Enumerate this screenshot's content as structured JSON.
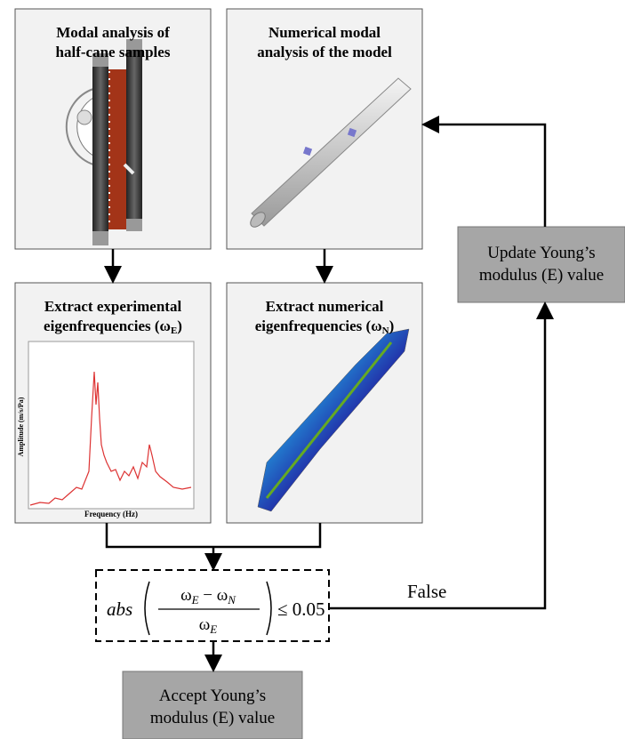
{
  "boxes": [
    {
      "lines": [
        "Modal analysis of",
        "half-cane samples"
      ]
    },
    {
      "lines": [
        "Numerical modal",
        "analysis of the model"
      ]
    },
    {
      "lines": [
        "Extract experimental"
      ],
      "prefix": "eigenfrequencies (ω",
      "sub": "E",
      "suffix": ")",
      "y_axis_label": "Amplitude (m/s/Pa)",
      "x_axis_label": "Frequency (Hz)"
    },
    {
      "lines": [
        "Extract numerical"
      ],
      "prefix": "eigenfrequencies (ω",
      "sub": "N",
      "suffix": ")"
    }
  ],
  "decision": {
    "abs": "abs",
    "numerator": "ω",
    "num_sub1": "E",
    "minus": " − ω",
    "num_sub2": "N",
    "denominator": "ω",
    "den_sub": "E",
    "condition": "≤ 0.05"
  },
  "false_label": "False",
  "update": {
    "lines": [
      "Update Young’s",
      "modulus (E) value"
    ]
  },
  "accept": {
    "lines": [
      "Accept Young’s",
      "modulus (E) value"
    ]
  }
}
